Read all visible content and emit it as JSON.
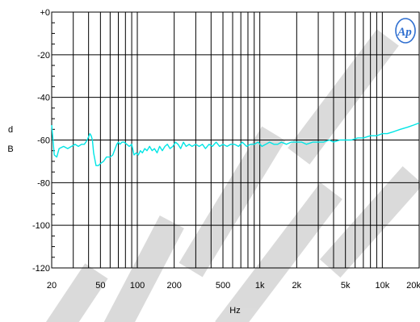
{
  "chart_data": {
    "type": "line",
    "xlabel": "Hz",
    "ylabel": "dB",
    "x_scale": "log",
    "xlim": [
      20,
      20000
    ],
    "ylim": [
      -120,
      0
    ],
    "grid": true,
    "x_ticks": [
      20,
      50,
      100,
      200,
      500,
      1000,
      2000,
      5000,
      10000,
      20000
    ],
    "x_tick_labels": [
      "20",
      "50",
      "100",
      "200",
      "500",
      "1k",
      "2k",
      "5k",
      "10k",
      "20k"
    ],
    "y_ticks": [
      0,
      -20,
      -40,
      -60,
      -80,
      -100,
      -120
    ],
    "y_tick_labels": [
      "+0",
      "-20",
      "-40",
      "-60",
      "-80",
      "-100",
      "-120"
    ],
    "logo_text": "Ap",
    "series": [
      {
        "color": "#00e5e5",
        "x": [
          20,
          21,
          22,
          23,
          25,
          27,
          29,
          31,
          33,
          35,
          37,
          39,
          41,
          42,
          43,
          44,
          46,
          48,
          50,
          53,
          56,
          60,
          63,
          66,
          68,
          70,
          72,
          75,
          78,
          82,
          86,
          90,
          94,
          98,
          102,
          106,
          110,
          115,
          120,
          126,
          132,
          138,
          145,
          152,
          160,
          168,
          176,
          185,
          195,
          205,
          215,
          226,
          238,
          250,
          265,
          280,
          300,
          320,
          340,
          360,
          385,
          410,
          440,
          470,
          500,
          540,
          580,
          620,
          670,
          720,
          780,
          840,
          900,
          970,
          1040,
          1120,
          1200,
          1300,
          1400,
          1500,
          1650,
          1800,
          2000,
          2200,
          2400,
          2700,
          3000,
          3300,
          3700,
          4000,
          4500,
          5000,
          5600,
          6300,
          7000,
          8000,
          9000,
          10000,
          11000,
          12500,
          14000,
          16000,
          18000,
          20000
        ],
        "y": [
          -53,
          -67,
          -68,
          -64,
          -63,
          -64,
          -63,
          -62,
          -63,
          -62,
          -62,
          -60,
          -57,
          -58,
          -60,
          -66,
          -72,
          -72,
          -71,
          -70,
          -68,
          -68,
          -67,
          -64,
          -62,
          -61,
          -62,
          -61,
          -61,
          -62,
          -63,
          -62,
          -67,
          -66,
          -67,
          -65,
          -66,
          -64,
          -65,
          -63,
          -65,
          -64,
          -66,
          -63,
          -65,
          -63,
          -62,
          -64,
          -63,
          -61,
          -62,
          -64,
          -61,
          -63,
          -62,
          -63,
          -62,
          -63,
          -62,
          -64,
          -62,
          -63,
          -61,
          -63,
          -62,
          -63,
          -62,
          -62,
          -63,
          -61,
          -63,
          -62,
          -62,
          -61,
          -63,
          -62,
          -61,
          -62,
          -62,
          -61,
          -62,
          -61,
          -61,
          -61,
          -62,
          -61,
          -61,
          -61,
          -60,
          -61,
          -60,
          -60,
          -60,
          -59,
          -59,
          -58,
          -58,
          -57,
          -57,
          -56,
          -55,
          -54,
          -53,
          -52
        ]
      }
    ]
  }
}
